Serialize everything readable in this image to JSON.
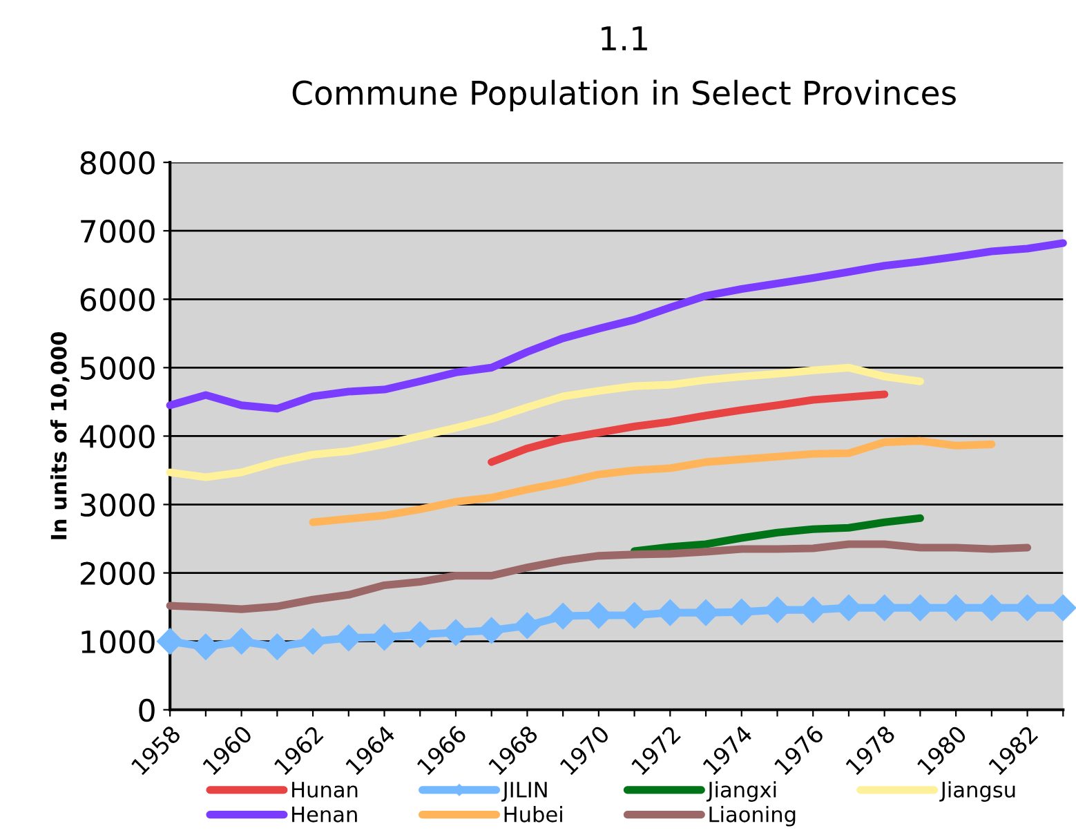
{
  "chart_data": {
    "type": "line",
    "title": "1.1",
    "subtitle": "Commune Population in Select Provinces",
    "ylabel": "In units of 10,000",
    "categories": [
      "1958",
      null,
      "1960",
      null,
      "1962",
      null,
      "1964",
      null,
      "1966",
      null,
      "1968",
      null,
      "1970",
      null,
      "1972",
      null,
      "1974",
      null,
      "1976",
      null,
      "1978",
      null,
      "1980",
      null,
      "1982",
      null
    ],
    "ylim": [
      0,
      8000
    ],
    "yticks": [
      0,
      1000,
      2000,
      3000,
      4000,
      5000,
      6000,
      7000,
      8000
    ],
    "grid": "y",
    "legend": "bottom",
    "series": [
      {
        "name": "Hunan",
        "color": "#e84343",
        "values": [
          null,
          null,
          null,
          null,
          null,
          null,
          null,
          null,
          null,
          3620,
          3820,
          3960,
          4050,
          4140,
          4210,
          4300,
          4380,
          4450,
          4530,
          4570,
          4610,
          null,
          null,
          null,
          null,
          null
        ]
      },
      {
        "name": "JILIN",
        "color": "#74b9ff",
        "marker": "diamond",
        "values": [
          1000,
          920,
          1000,
          920,
          1000,
          1050,
          1060,
          1100,
          1130,
          1160,
          1230,
          1370,
          1380,
          1380,
          1420,
          1420,
          1430,
          1460,
          1460,
          1490,
          1490,
          1490,
          1490,
          1490,
          1490,
          1490
        ]
      },
      {
        "name": "Jiangxi",
        "color": "#007417",
        "values": [
          null,
          null,
          null,
          null,
          null,
          null,
          null,
          null,
          null,
          null,
          null,
          null,
          null,
          2320,
          2380,
          2420,
          2510,
          2590,
          2640,
          2660,
          2740,
          2800,
          null,
          null,
          null,
          null
        ]
      },
      {
        "name": "Jiangsu",
        "color": "#fff19a",
        "values": [
          3470,
          3400,
          3470,
          3620,
          3730,
          3780,
          3880,
          4000,
          4120,
          4250,
          4420,
          4580,
          4660,
          4730,
          4750,
          4820,
          4870,
          4910,
          4960,
          5000,
          4870,
          4800,
          null,
          null,
          null,
          null
        ]
      },
      {
        "name": "Henan",
        "color": "#7a3cff",
        "values": [
          4450,
          4600,
          4450,
          4400,
          4580,
          4650,
          4680,
          4800,
          4930,
          5000,
          5230,
          5430,
          5570,
          5700,
          5880,
          6050,
          6150,
          6230,
          6310,
          6400,
          6490,
          6550,
          6620,
          6700,
          6740,
          6820
        ]
      },
      {
        "name": "Hubei",
        "color": "#ffb45a",
        "values": [
          null,
          null,
          null,
          null,
          2740,
          2790,
          2840,
          2930,
          3040,
          3100,
          3220,
          3320,
          3440,
          3500,
          3530,
          3620,
          3660,
          3700,
          3740,
          3750,
          3910,
          3930,
          3860,
          3880,
          null,
          null
        ]
      },
      {
        "name": "Liaoning",
        "color": "#9c6767",
        "values": [
          1520,
          1500,
          1470,
          1510,
          1610,
          1680,
          1820,
          1870,
          1960,
          1960,
          2080,
          2180,
          2250,
          2270,
          2280,
          2310,
          2350,
          2350,
          2360,
          2420,
          2420,
          2370,
          2370,
          2350,
          2370,
          null
        ]
      }
    ]
  }
}
